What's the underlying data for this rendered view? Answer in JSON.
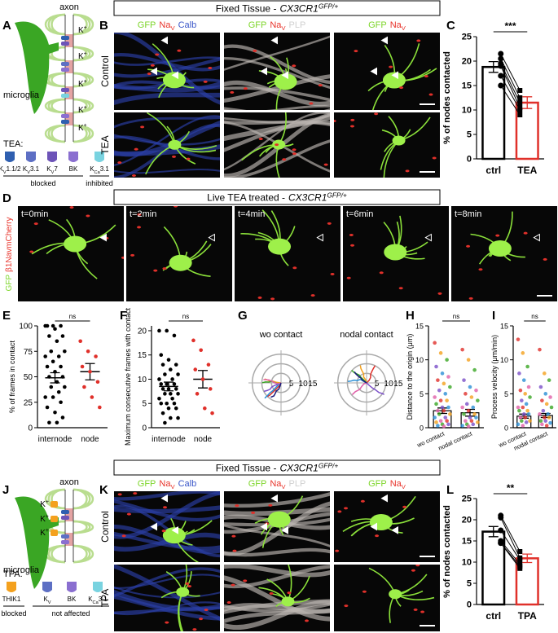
{
  "headers": [
    {
      "text": "Fixed Tissue -",
      "gene": "CX3CR1",
      "sup": "GFP/+"
    },
    {
      "text": "Live TEA treated -",
      "gene": "CX3CR1",
      "sup": "GFP/+"
    },
    {
      "text": "Fixed Tissue -",
      "gene": "CX3CR1",
      "sup": "GFP/+"
    }
  ],
  "panel_letters": [
    "A",
    "B",
    "C",
    "D",
    "E",
    "F",
    "G",
    "H",
    "I",
    "J",
    "K",
    "L"
  ],
  "A": {
    "axon": "axon",
    "k": [
      "K",
      "+"
    ],
    "microglia": "microglia",
    "drug": "TEA:",
    "channels": [
      [
        "K",
        "V",
        "1.1/2"
      ],
      [
        "K",
        "V",
        "3.1"
      ],
      [
        "K",
        "V",
        "7"
      ],
      [
        "BK"
      ],
      [
        "K",
        "Ca",
        "3.1"
      ]
    ],
    "blocked": "blocked",
    "inhibited": "inhibited"
  },
  "J": {
    "axon": "axon",
    "k": [
      "K",
      "+"
    ],
    "microglia": "microglia",
    "drug": "TPA:",
    "channels": [
      [
        "THIK1"
      ],
      [
        "K",
        "V"
      ],
      [
        "BK"
      ],
      [
        "K",
        "Ca",
        "3.1"
      ]
    ],
    "blocked": "blocked",
    "not_affected": "not affected"
  },
  "B": {
    "columns": [
      [
        "GFP",
        "Na",
        "V",
        "Calb"
      ],
      [
        "GFP",
        "Na",
        "V",
        "PLP"
      ],
      [
        "GFP",
        "Na",
        "V"
      ]
    ],
    "rows": [
      "Control",
      "TEA"
    ]
  },
  "K": {
    "columns": [
      [
        "GFP",
        "Na",
        "V",
        "Calb"
      ],
      [
        "GFP",
        "Na",
        "V",
        "PLP"
      ],
      [
        "GFP",
        "Na",
        "V"
      ]
    ],
    "rows": [
      "Control",
      "TPA"
    ]
  },
  "D": {
    "side": [
      "GFP",
      "β1NavmCherry"
    ],
    "times": [
      "t=0min",
      "t=2min",
      "t=4min",
      "t=6min",
      "t=8min"
    ]
  },
  "G": {
    "titles": [
      "wo contact",
      "nodal contact"
    ],
    "ticks": [
      5,
      10,
      15
    ],
    "rlim": [
      0,
      17
    ]
  },
  "chart_data": [
    {
      "type": "bar",
      "style": "bar",
      "ylabel": "% of nodes contacted",
      "categories": [
        "ctrl",
        "TEA"
      ],
      "values": [
        18.8,
        11.5
      ],
      "errors": [
        1.1,
        1.2
      ],
      "colors": [
        "#000000",
        "#e0302a"
      ],
      "point_colors": [
        "#000000"
      ],
      "points": [
        [
          21.5,
          20.5,
          19.5,
          19,
          17,
          15
        ],
        [
          14,
          12.5,
          11.5,
          10.5,
          10,
          9
        ]
      ],
      "paired": true,
      "sig": "***",
      "ylim": [
        0,
        25
      ],
      "yticks": [
        0,
        5,
        10,
        15,
        20,
        25
      ]
    },
    {
      "type": "bar",
      "style": "mean",
      "ylabel": "% of frames in contact",
      "categories": [
        "internode",
        "node"
      ],
      "values": [
        49,
        55
      ],
      "errors": [
        5,
        8
      ],
      "colors": [
        "#000000",
        "#000000"
      ],
      "point_colors": [
        "#000000",
        "#e0302a"
      ],
      "points": [
        [
          100,
          100,
          100,
          100,
          97,
          90,
          90,
          85,
          75,
          75,
          70,
          70,
          65,
          60,
          60,
          55,
          50,
          50,
          45,
          40,
          40,
          35,
          30,
          30,
          25,
          20,
          15,
          10,
          5,
          5
        ],
        [
          85,
          75,
          70,
          60,
          55,
          45,
          40,
          30,
          20
        ]
      ],
      "paired": false,
      "sig": "ns",
      "ylim": [
        0,
        100
      ],
      "yticks": [
        0,
        25,
        50,
        75,
        100
      ]
    },
    {
      "type": "bar",
      "style": "mean",
      "ylabel": "Maximum consecutive frames with contact",
      "categories": [
        "internode",
        "node"
      ],
      "values": [
        8.5,
        10
      ],
      "errors": [
        0.9,
        1.8
      ],
      "colors": [
        "#000000",
        "#000000"
      ],
      "point_colors": [
        "#000000",
        "#e0302a"
      ],
      "points": [
        [
          20,
          20,
          19,
          15,
          14,
          13,
          13,
          12,
          11,
          11,
          10,
          10,
          9,
          9,
          9,
          8,
          8,
          8,
          7,
          7,
          7,
          6,
          6,
          5,
          5,
          5,
          4,
          4,
          3,
          2,
          2,
          1
        ],
        [
          18,
          16,
          13,
          12,
          10,
          8,
          7,
          4,
          3
        ]
      ],
      "paired": false,
      "sig": "ns",
      "ylim": [
        0,
        21
      ],
      "yticks": [
        0,
        5,
        10,
        15,
        20
      ]
    },
    {
      "type": "bar",
      "style": "bar",
      "ylabel": "Distance to the origin (μm)",
      "categories": [
        "wo contact",
        "nodal contact"
      ],
      "values": [
        2.5,
        2.2
      ],
      "errors": [
        0.4,
        0.5
      ],
      "colors": [
        "#000000",
        "#000000"
      ],
      "point_colors": [
        "#e0302a",
        "#f4a11e",
        "#3aa624",
        "#7b4fc8",
        "#2b8fd6",
        "#e05fa8"
      ],
      "points": [
        [
          12.5,
          11,
          10,
          9,
          8,
          7.5,
          7,
          6.5,
          6,
          5.5,
          5,
          4.5,
          4,
          4,
          3.5,
          3,
          3,
          2.5,
          2.5,
          2,
          2,
          1.5,
          1.5,
          1,
          1,
          0.8,
          0.5,
          0.5,
          0.3,
          0.2
        ],
        [
          11.5,
          10,
          8.5,
          7,
          6,
          5.5,
          5,
          4.5,
          4,
          3.5,
          3,
          3,
          2.5,
          2,
          2,
          1.5,
          1.5,
          1,
          1,
          0.8,
          0.5,
          0.5,
          0.3,
          0.2
        ]
      ],
      "paired": false,
      "sig": "ns",
      "ylim": [
        0,
        15
      ],
      "yticks": [
        0,
        5,
        10,
        15
      ]
    },
    {
      "type": "bar",
      "style": "bar",
      "ylabel": "Process velocity (μm/min)",
      "categories": [
        "wo contact",
        "nodal contact"
      ],
      "values": [
        1.7,
        1.8
      ],
      "errors": [
        0.3,
        0.3
      ],
      "colors": [
        "#000000",
        "#000000"
      ],
      "point_colors": [
        "#e0302a",
        "#f4a11e",
        "#3aa624",
        "#7b4fc8",
        "#2b8fd6",
        "#e05fa8"
      ],
      "points": [
        [
          13,
          11,
          9,
          8,
          7,
          6,
          5.5,
          5,
          4.5,
          4,
          3.5,
          3,
          3,
          2.5,
          2.5,
          2,
          2,
          1.5,
          1.5,
          1,
          1,
          0.8,
          0.5,
          0.3
        ],
        [
          11.5,
          8,
          7,
          6,
          5,
          4.5,
          4,
          3.5,
          3,
          2.5,
          2,
          2,
          1.5,
          1.5,
          1,
          1,
          0.7,
          0.5,
          0.3
        ]
      ],
      "paired": false,
      "sig": "ns",
      "ylim": [
        0,
        15
      ],
      "yticks": [
        0,
        5,
        10,
        15
      ]
    },
    {
      "type": "bar",
      "style": "bar",
      "ylabel": "% of nodes contacted",
      "categories": [
        "ctrl",
        "TPA"
      ],
      "values": [
        17.2,
        10.9
      ],
      "errors": [
        1.2,
        1.0
      ],
      "colors": [
        "#000000",
        "#e0302a"
      ],
      "point_colors": [
        "#000000"
      ],
      "points": [
        [
          21,
          20.5,
          17.5,
          15,
          14.5,
          14.5
        ],
        [
          12.5,
          11,
          10.5,
          9.5,
          9,
          8.5
        ]
      ],
      "paired": true,
      "sig": "**",
      "ylim": [
        0,
        25
      ],
      "yticks": [
        0,
        5,
        10,
        15,
        20,
        25
      ]
    }
  ]
}
